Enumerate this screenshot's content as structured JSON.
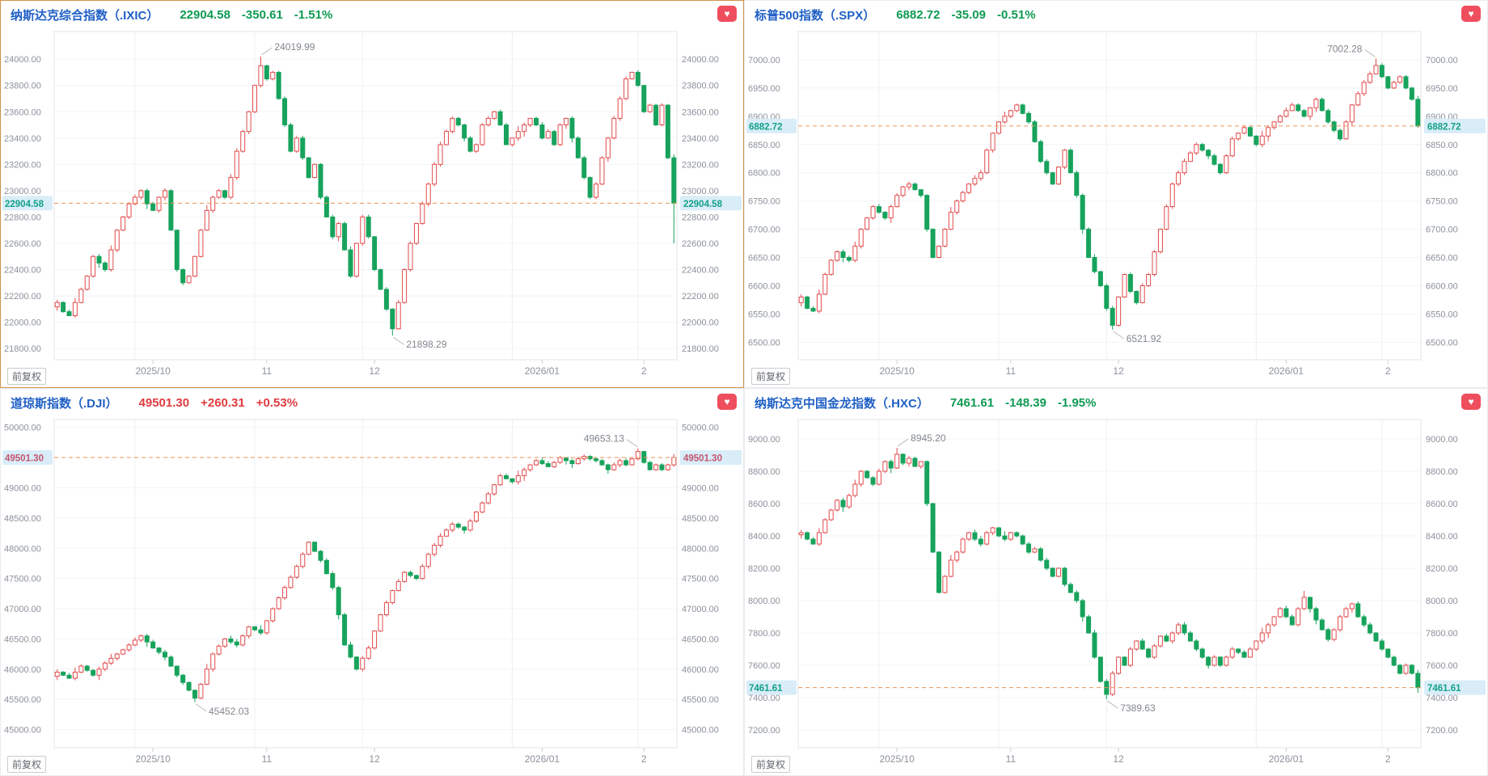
{
  "adjust_label": "前复权",
  "colors": {
    "up_text": "#e03b40",
    "down_text": "#0f9a53",
    "title_blue": "#1f5fc5",
    "candle_up": "#e24b4c",
    "candle_up_fill": "#ffffff",
    "candle_down": "#17a35c",
    "current_line": "#e8965a",
    "current_label_bg": "#d9edf8",
    "current_label_up": "#c4556f",
    "current_label_down": "#12a188",
    "axis_text": "#8b919b",
    "annotation_text": "#81868e",
    "leader_line": "#b9bdc4",
    "grid_h": "#f3f4f6",
    "grid_v": "#eef0f2",
    "plot_border": "#e3e5e8",
    "tick_mark": "#c9cdd2",
    "favorite_red": "#ef4e5e",
    "active_border": "#d2914a"
  },
  "x_axis": {
    "labels": [
      "2025/10",
      "11",
      "12",
      "2026/01",
      "2"
    ],
    "label_indices": [
      16,
      35,
      53,
      81,
      98
    ],
    "grid_indices": [
      13,
      33,
      51,
      76,
      97
    ]
  },
  "panels": [
    {
      "title": "纳斯达克综合指数（.IXIC）",
      "price": "22904.58",
      "change": "-350.61",
      "pct": "-1.51%",
      "trend": "down",
      "favorite_icon": "heart-icon",
      "chart_data": {
        "type": "candlestick",
        "ylim": [
          21715,
          24210
        ],
        "yticks": [
          24000,
          23800,
          23600,
          23400,
          23200,
          23000,
          22800,
          22600,
          22400,
          22200,
          22000,
          21800
        ],
        "current": 22904.58,
        "current_label": "22904.58",
        "high_annotation": {
          "index": 34,
          "value": 24019.99,
          "label": "24019.99"
        },
        "low_annotation": {
          "index": 56,
          "value": 21898.29,
          "label": "21898.29"
        },
        "wick_overrides": [
          {
            "i": 103,
            "low": 22600
          }
        ],
        "closes": [
          22150,
          22080,
          22050,
          22150,
          22250,
          22350,
          22500,
          22450,
          22400,
          22550,
          22700,
          22800,
          22900,
          22950,
          23000,
          22900,
          22850,
          22950,
          23000,
          22700,
          22400,
          22300,
          22350,
          22500,
          22700,
          22850,
          22950,
          23000,
          22950,
          23100,
          23300,
          23450,
          23600,
          23800,
          23950,
          23850,
          23900,
          23700,
          23500,
          23300,
          23400,
          23250,
          23100,
          23200,
          22950,
          22800,
          22650,
          22750,
          22550,
          22350,
          22600,
          22800,
          22650,
          22400,
          22250,
          22100,
          21950,
          22150,
          22400,
          22600,
          22750,
          22900,
          23050,
          23200,
          23350,
          23450,
          23550,
          23500,
          23400,
          23300,
          23350,
          23500,
          23550,
          23600,
          23500,
          23350,
          23400,
          23450,
          23500,
          23550,
          23500,
          23400,
          23450,
          23350,
          23500,
          23550,
          23400,
          23250,
          23100,
          22950,
          23050,
          23250,
          23400,
          23550,
          23700,
          23850,
          23900,
          23800,
          23600,
          23650,
          23500,
          23650,
          23250,
          22904.58
        ]
      }
    },
    {
      "title": "标普500指数（.SPX）",
      "price": "6882.72",
      "change": "-35.09",
      "pct": "-0.51%",
      "trend": "down",
      "favorite_icon": "heart-icon",
      "chart_data": {
        "type": "candlestick",
        "ylim": [
          6469,
          7050
        ],
        "yticks": [
          7000,
          6950,
          6900,
          6850,
          6800,
          6750,
          6700,
          6650,
          6600,
          6550,
          6500
        ],
        "current": 6882.72,
        "current_label": "6882.72",
        "high_annotation": {
          "index": 96,
          "value": 7002.28,
          "label": "7002.28"
        },
        "low_annotation": {
          "index": 52,
          "value": 6521.92,
          "label": "6521.92"
        },
        "wick_overrides": [],
        "closes": [
          6580,
          6560,
          6555,
          6585,
          6620,
          6645,
          6660,
          6650,
          6645,
          6670,
          6700,
          6720,
          6740,
          6730,
          6720,
          6740,
          6760,
          6775,
          6780,
          6770,
          6760,
          6700,
          6650,
          6670,
          6700,
          6730,
          6750,
          6765,
          6780,
          6790,
          6800,
          6840,
          6870,
          6890,
          6900,
          6910,
          6920,
          6905,
          6890,
          6855,
          6820,
          6800,
          6780,
          6810,
          6840,
          6800,
          6760,
          6700,
          6650,
          6625,
          6600,
          6560,
          6530,
          6580,
          6620,
          6590,
          6570,
          6600,
          6620,
          6660,
          6700,
          6740,
          6780,
          6800,
          6820,
          6835,
          6850,
          6840,
          6830,
          6815,
          6800,
          6830,
          6860,
          6870,
          6880,
          6865,
          6850,
          6865,
          6880,
          6890,
          6900,
          6910,
          6920,
          6910,
          6900,
          6915,
          6930,
          6910,
          6890,
          6875,
          6860,
          6890,
          6920,
          6940,
          6960,
          6975,
          6990,
          6970,
          6950,
          6960,
          6970,
          6950,
          6930,
          6882.72
        ]
      }
    },
    {
      "title": "道琼斯指数（.DJI）",
      "price": "49501.30",
      "change": "+260.31",
      "pct": "+0.53%",
      "trend": "up",
      "favorite_icon": "heart-icon",
      "chart_data": {
        "type": "candlestick",
        "ylim": [
          44700,
          50130
        ],
        "yticks": [
          50000,
          49500,
          49000,
          48500,
          48000,
          47500,
          47000,
          46500,
          46000,
          45500,
          45000
        ],
        "current": 49501.3,
        "current_label": "49501.30",
        "high_annotation": {
          "index": 97,
          "value": 49653.13,
          "label": "49653.13"
        },
        "low_annotation": {
          "index": 23,
          "value": 45452.03,
          "label": "45452.03"
        },
        "wick_overrides": [],
        "closes": [
          45950,
          45900,
          45850,
          45950,
          46050,
          45980,
          45900,
          46000,
          46100,
          46180,
          46250,
          46320,
          46400,
          46480,
          46550,
          46450,
          46350,
          46280,
          46200,
          46050,
          45900,
          45780,
          45650,
          45520,
          45750,
          46000,
          46250,
          46380,
          46500,
          46450,
          46400,
          46550,
          46700,
          46650,
          46600,
          46800,
          47000,
          47180,
          47350,
          47520,
          47700,
          47900,
          48100,
          47950,
          47800,
          47580,
          47350,
          46900,
          46400,
          46200,
          46000,
          46180,
          46350,
          46630,
          46900,
          47100,
          47300,
          47450,
          47600,
          47550,
          47500,
          47700,
          47900,
          48050,
          48200,
          48300,
          48400,
          48350,
          48300,
          48450,
          48600,
          48750,
          48900,
          49050,
          49200,
          49150,
          49100,
          49200,
          49300,
          49380,
          49450,
          49400,
          49350,
          49420,
          49500,
          49450,
          49400,
          49480,
          49520,
          49480,
          49450,
          49380,
          49300,
          49380,
          49450,
          49380,
          49480,
          49600,
          49420,
          49300,
          49380,
          49300,
          49380,
          49501.3
        ]
      }
    },
    {
      "title": "纳斯达克中国金龙指数（.HXC）",
      "price": "7461.61",
      "change": "-148.39",
      "pct": "-1.95%",
      "trend": "down",
      "favorite_icon": "heart-icon",
      "chart_data": {
        "type": "candlestick",
        "ylim": [
          7090,
          9120
        ],
        "yticks": [
          9000,
          8800,
          8600,
          8400,
          8200,
          8000,
          7800,
          7600,
          7400,
          7200
        ],
        "current": 7461.61,
        "current_label": "7461.61",
        "high_annotation": {
          "index": 16,
          "value": 8945.2,
          "label": "8945.20"
        },
        "low_annotation": {
          "index": 51,
          "value": 7389.63,
          "label": "7389.63"
        },
        "wick_overrides": [
          {
            "i": 103,
            "low": 7430
          },
          {
            "i": 84,
            "high": 8060
          }
        ],
        "closes": [
          8420,
          8380,
          8350,
          8420,
          8500,
          8560,
          8620,
          8580,
          8650,
          8720,
          8800,
          8760,
          8720,
          8800,
          8860,
          8820,
          8905,
          8850,
          8880,
          8830,
          8860,
          8600,
          8300,
          8050,
          8150,
          8250,
          8300,
          8380,
          8420,
          8380,
          8350,
          8420,
          8450,
          8400,
          8380,
          8420,
          8400,
          8350,
          8300,
          8320,
          8250,
          8200,
          8150,
          8200,
          8100,
          8050,
          8000,
          7900,
          7800,
          7650,
          7500,
          7420,
          7550,
          7650,
          7600,
          7700,
          7750,
          7700,
          7650,
          7720,
          7780,
          7750,
          7800,
          7850,
          7800,
          7750,
          7700,
          7650,
          7600,
          7650,
          7600,
          7650,
          7700,
          7680,
          7650,
          7700,
          7750,
          7800,
          7850,
          7900,
          7950,
          7900,
          7850,
          7950,
          8020,
          7950,
          7880,
          7820,
          7760,
          7820,
          7900,
          7950,
          7980,
          7900,
          7850,
          7800,
          7750,
          7700,
          7650,
          7600,
          7550,
          7600,
          7550,
          7461.61
        ]
      }
    }
  ]
}
